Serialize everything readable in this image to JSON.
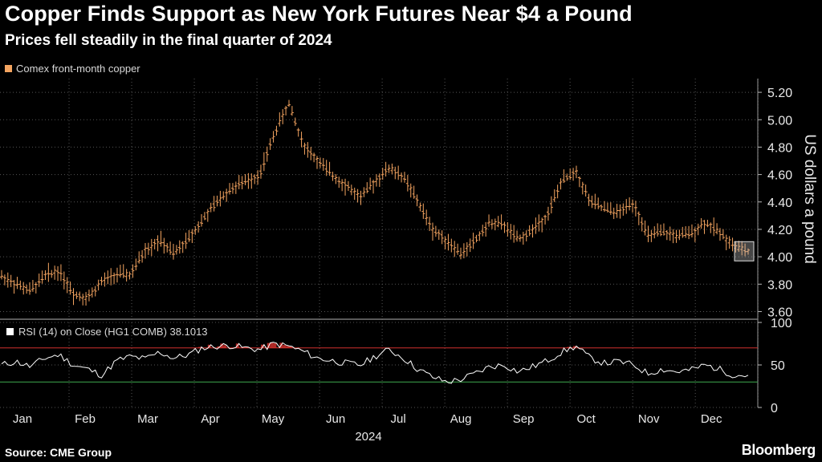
{
  "header": {
    "title": "Copper Finds Support as New York Futures Near $4 a Pound",
    "subtitle": "Prices fell steadily in the final quarter of 2024"
  },
  "footer": {
    "source": "Source: CME Group",
    "brand": "Bloomberg"
  },
  "chart_data": [
    {
      "type": "line",
      "style": "ohlc-bars",
      "series": [
        {
          "name": "Comex front-month copper",
          "color": "#f4a460",
          "x": [
            "Jan 2",
            "Jan 9",
            "Jan 16",
            "Jan 23",
            "Jan 30",
            "Feb 6",
            "Feb 13",
            "Feb 20",
            "Feb 27",
            "Mar 5",
            "Mar 12",
            "Mar 19",
            "Mar 26",
            "Apr 2",
            "Apr 9",
            "Apr 16",
            "Apr 23",
            "Apr 30",
            "May 7",
            "May 14",
            "May 20",
            "May 24",
            "May 31",
            "Jun 7",
            "Jun 14",
            "Jun 21",
            "Jun 28",
            "Jul 3",
            "Jul 10",
            "Jul 17",
            "Jul 24",
            "Jul 31",
            "Aug 7",
            "Aug 14",
            "Aug 21",
            "Aug 28",
            "Sep 4",
            "Sep 11",
            "Sep 18",
            "Sep 25",
            "Oct 2",
            "Oct 9",
            "Oct 16",
            "Oct 23",
            "Oct 30",
            "Nov 6",
            "Nov 13",
            "Nov 20",
            "Nov 27",
            "Dec 4",
            "Dec 11",
            "Dec 18",
            "Dec 27"
          ],
          "values": [
            3.86,
            3.8,
            3.75,
            3.86,
            3.9,
            3.73,
            3.7,
            3.82,
            3.87,
            3.87,
            4.05,
            4.12,
            4.02,
            4.13,
            4.27,
            4.4,
            4.5,
            4.55,
            4.6,
            4.9,
            5.12,
            4.82,
            4.7,
            4.6,
            4.52,
            4.43,
            4.55,
            4.65,
            4.58,
            4.4,
            4.2,
            4.12,
            4.02,
            4.12,
            4.25,
            4.23,
            4.12,
            4.2,
            4.3,
            4.55,
            4.62,
            4.4,
            4.35,
            4.32,
            4.4,
            4.15,
            4.18,
            4.15,
            4.17,
            4.25,
            4.18,
            4.08,
            4.04
          ]
        }
      ],
      "ylabel": "US dollars a pound",
      "ylim": [
        3.55,
        5.3
      ],
      "yticks": [
        "5.20",
        "5.00",
        "4.80",
        "4.60",
        "4.40",
        "4.20",
        "4.00",
        "3.80",
        "3.60"
      ],
      "xticks": [
        "Jan",
        "Feb",
        "Mar",
        "Apr",
        "May",
        "Jun",
        "Jul",
        "Aug",
        "Sep",
        "Oct",
        "Nov",
        "Dec"
      ],
      "xlabel": "2024",
      "grid": true
    },
    {
      "type": "line",
      "title": "RSI (14)  on Close (HG1 COMB) 38.1013",
      "series": [
        {
          "name": "RSI",
          "color": "#ffffff",
          "values": [
            50,
            54,
            48,
            58,
            62,
            50,
            45,
            38,
            55,
            60,
            57,
            65,
            58,
            62,
            70,
            72,
            73,
            70,
            68,
            75,
            72,
            66,
            58,
            55,
            52,
            50,
            60,
            68,
            58,
            45,
            36,
            30,
            33,
            40,
            48,
            50,
            42,
            48,
            55,
            65,
            72,
            58,
            52,
            54,
            50,
            40,
            45,
            42,
            44,
            50,
            45,
            38,
            38
          ]
        }
      ],
      "ylim": [
        0,
        100
      ],
      "yticks": [
        "100",
        "50",
        "0"
      ],
      "overbought": 70,
      "oversold": 30,
      "overbought_color": "#d0312d",
      "oversold_color": "#3ea94f"
    }
  ]
}
